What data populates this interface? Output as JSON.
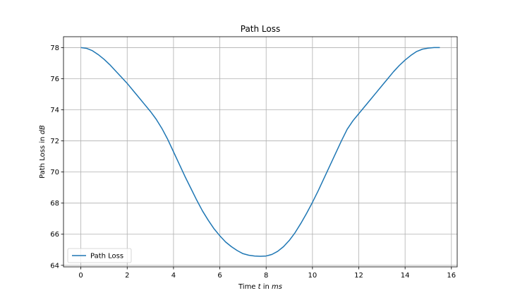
{
  "chart_data": {
    "type": "line",
    "title": "Path Loss",
    "xlabel_prefix": "Time ",
    "xlabel_var": "t",
    "xlabel_mid": " in ",
    "xlabel_unit": "ms",
    "ylabel_prefix": "Path Loss in ",
    "ylabel_unit": "dB",
    "xlim": [
      -0.75,
      16.25
    ],
    "ylim": [
      63.9,
      78.7
    ],
    "xticks": [
      0,
      2,
      4,
      6,
      8,
      10,
      12,
      14,
      16
    ],
    "yticks": [
      64,
      66,
      68,
      70,
      72,
      74,
      76,
      78
    ],
    "grid": true,
    "legend_position": "lower-left",
    "series": [
      {
        "name": "Path Loss",
        "color": "#1f77b4",
        "x": [
          0,
          0.25,
          0.5,
          0.75,
          1,
          1.25,
          1.5,
          1.75,
          2,
          2.25,
          2.5,
          2.75,
          3,
          3.25,
          3.5,
          3.75,
          4,
          4.25,
          4.5,
          4.75,
          5,
          5.25,
          5.5,
          5.75,
          6,
          6.25,
          6.5,
          6.75,
          7,
          7.25,
          7.5,
          7.75,
          8,
          8.25,
          8.5,
          8.75,
          9,
          9.25,
          9.5,
          9.75,
          10,
          10.25,
          10.5,
          10.75,
          11,
          11.25,
          11.5,
          11.75,
          12,
          12.25,
          12.5,
          12.75,
          13,
          13.25,
          13.5,
          13.75,
          14,
          14.25,
          14.5,
          14.75,
          15,
          15.25,
          15.5
        ],
        "y": [
          78.0,
          77.95,
          77.8,
          77.55,
          77.25,
          76.9,
          76.5,
          76.1,
          75.7,
          75.25,
          74.8,
          74.35,
          73.9,
          73.4,
          72.8,
          72.1,
          71.3,
          70.5,
          69.7,
          68.95,
          68.2,
          67.5,
          66.9,
          66.35,
          65.9,
          65.5,
          65.2,
          64.95,
          64.75,
          64.65,
          64.6,
          64.58,
          64.6,
          64.7,
          64.9,
          65.2,
          65.6,
          66.1,
          66.7,
          67.35,
          68.05,
          68.8,
          69.6,
          70.4,
          71.2,
          72.0,
          72.75,
          73.3,
          73.75,
          74.2,
          74.65,
          75.1,
          75.55,
          76.0,
          76.45,
          76.85,
          77.2,
          77.5,
          77.75,
          77.9,
          77.97,
          78.0,
          78.0
        ]
      }
    ]
  }
}
